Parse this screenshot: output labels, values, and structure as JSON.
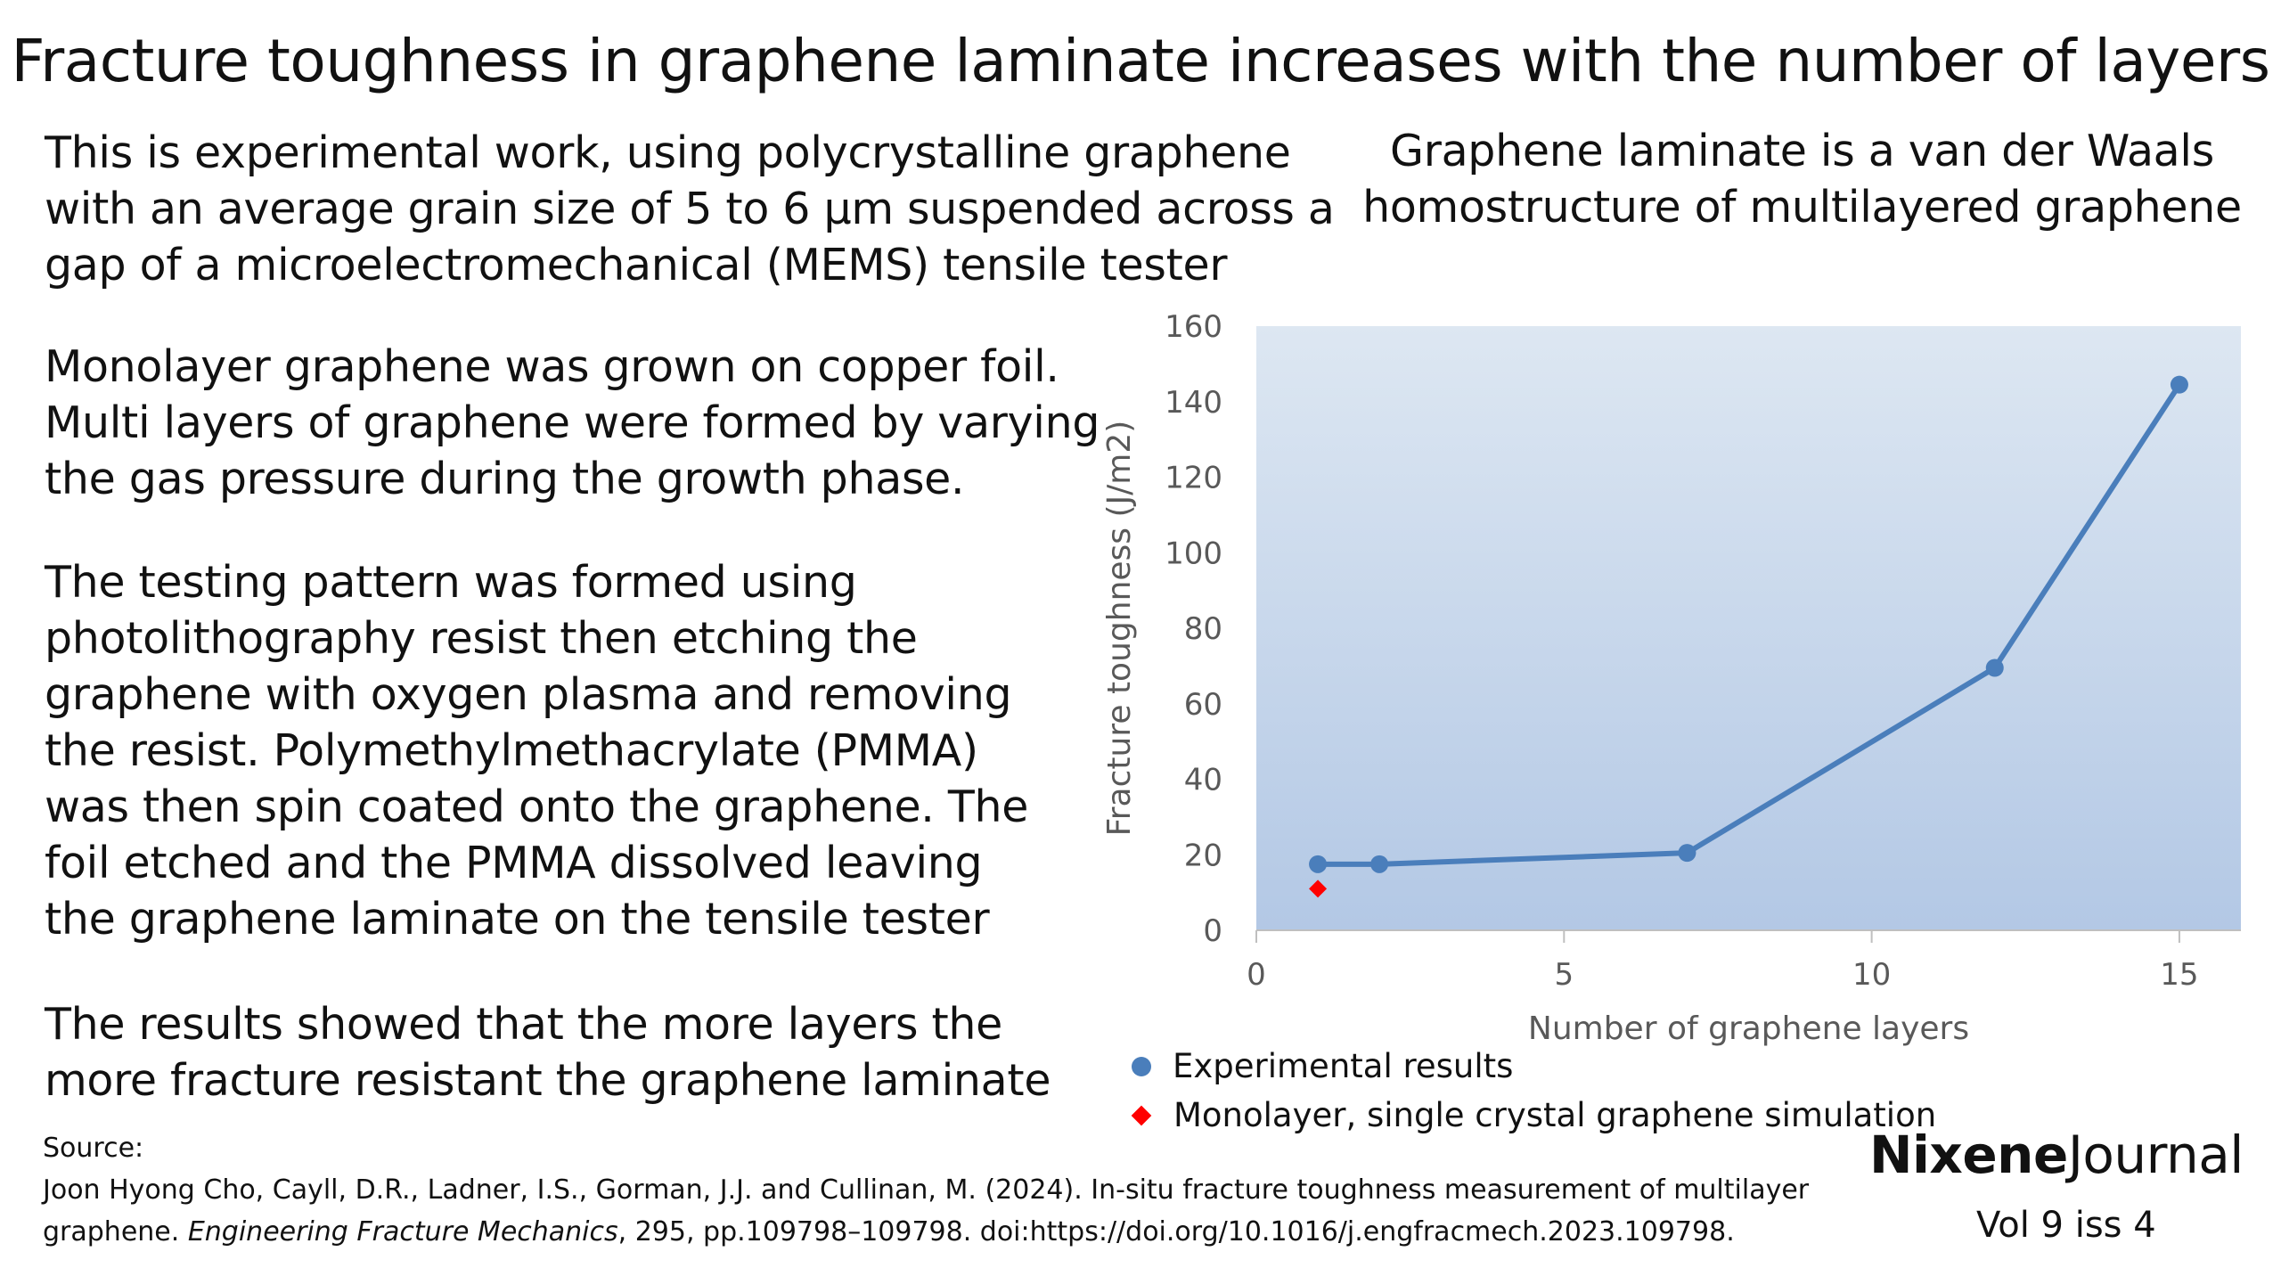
{
  "title": "Fracture toughness in graphene laminate increases with the number of layers",
  "paragraphs": [
    [
      "This is experimental work, using polycrystalline graphene",
      "with an average grain size of 5 to 6 μm suspended across a",
      "gap of a microelectromechanical (MEMS) tensile tester"
    ],
    [
      "Monolayer graphene was grown on copper foil.",
      "Multi layers of graphene were formed by varying",
      "the gas pressure during the growth phase."
    ],
    [
      "The testing pattern was formed using",
      "photolithography resist then etching the",
      "graphene with oxygen plasma and removing",
      "the resist. Polymethylmethacrylate (PMMA)",
      "was then spin coated onto the graphene. The",
      "foil etched and the PMMA dissolved leaving",
      "the graphene laminate on the tensile tester"
    ],
    [
      "The results showed that the more layers the",
      "more fracture resistant the graphene laminate"
    ]
  ],
  "chart_heading": [
    "Graphene laminate is a van der Waals",
    "homostructure of multilayered graphene"
  ],
  "chart_data": {
    "type": "line",
    "xlabel": "Number of graphene layers",
    "ylabel": "Fracture toughness (J/m2)",
    "xlim": [
      0,
      16
    ],
    "ylim": [
      0,
      160
    ],
    "xticks": [
      0,
      5,
      10,
      15
    ],
    "yticks": [
      0,
      20,
      40,
      60,
      80,
      100,
      120,
      140,
      160
    ],
    "legend_position": "bottom-left",
    "series": [
      {
        "name": "Experimental results",
        "type": "line",
        "marker": "circle",
        "color": "#4a7ebb",
        "x": [
          1,
          2,
          7,
          12,
          15
        ],
        "y": [
          17.5,
          17.5,
          20.5,
          69.5,
          144.5
        ]
      },
      {
        "name": "Monolayer, single crystal graphene simulation",
        "type": "scatter",
        "marker": "diamond",
        "color": "#ff0000",
        "x": [
          1
        ],
        "y": [
          11
        ]
      }
    ],
    "plot_background": [
      "#dde7f2",
      "#b3c8e5"
    ]
  },
  "source": {
    "label": "Source:",
    "line1": "Joon Hyong Cho, Cayll, D.R., Ladner, I.S., Gorman, J.J. and Cullinan, M. (2024). In-situ fracture toughness measurement of multilayer",
    "line2_pre": "graphene. ",
    "line2_journal": "Engineering Fracture Mechanics",
    "line2_post": ", 295, pp.109798–109798. doi:https://doi.org/10.1016/j.engfracmech.2023.109798."
  },
  "brand": {
    "bold": "Nixene",
    "regular": "Journal"
  },
  "issue": "Vol 9  iss 4"
}
